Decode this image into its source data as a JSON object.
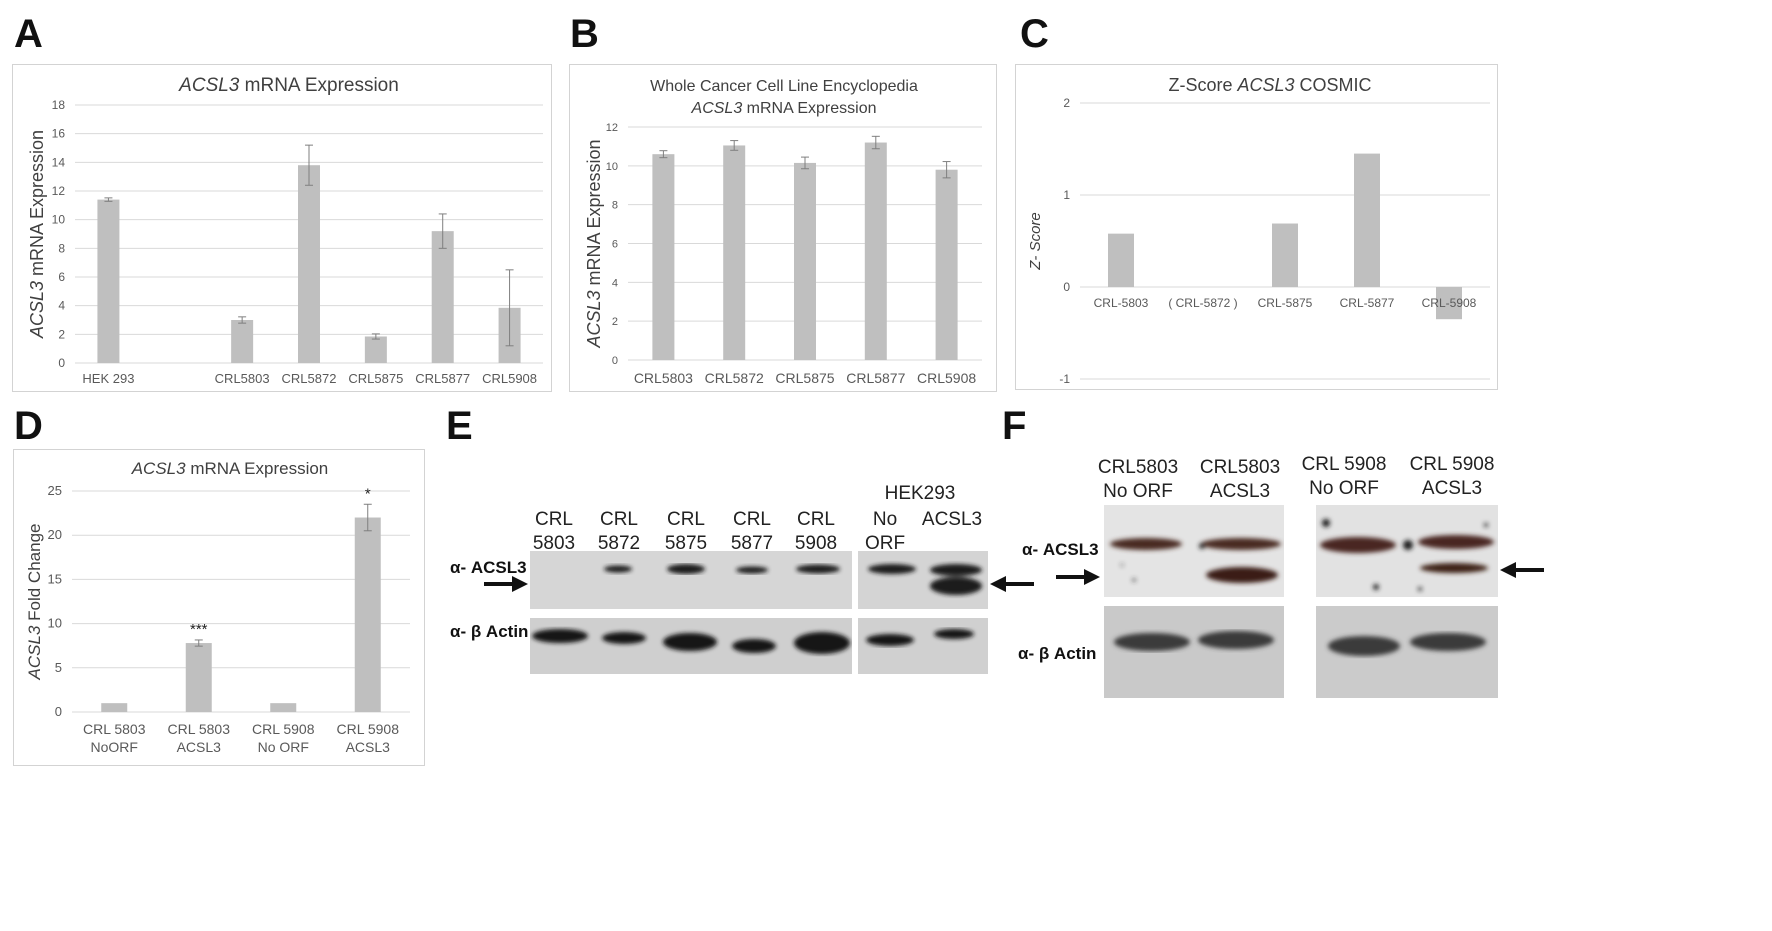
{
  "panels": {
    "A": "A",
    "B": "B",
    "C": "C",
    "D": "D",
    "E": "E",
    "F": "F"
  },
  "chart_data": [
    {
      "id": "A",
      "type": "bar",
      "title_italic": "ACSL3",
      "title_rest": " mRNA Expression",
      "ylabel_italic": "ACSL3",
      "ylabel_rest": " mRNA Expression",
      "ylim": [
        0,
        18
      ],
      "yticks": [
        0,
        2,
        4,
        6,
        8,
        10,
        12,
        14,
        16,
        18
      ],
      "grid": true,
      "categories": [
        "HEK 293",
        "",
        "CRL5803",
        "CRL5872",
        "CRL5875",
        "CRL5877",
        "CRL5908"
      ],
      "values": [
        11.4,
        null,
        3.0,
        13.8,
        1.85,
        9.2,
        3.85
      ],
      "errors": [
        0.12,
        null,
        0.22,
        1.4,
        0.18,
        1.2,
        2.65
      ]
    },
    {
      "id": "B",
      "type": "bar",
      "title_line1": "Whole Cancer Cell Line Encyclopedia",
      "title_italic": "ACSL3",
      "title_rest": " mRNA Expression",
      "ylabel_italic": "ACSL3",
      "ylabel_rest": " mRNA Expression",
      "ylim": [
        0,
        12
      ],
      "yticks": [
        0,
        2,
        4,
        6,
        8,
        10,
        12
      ],
      "grid": true,
      "categories": [
        "CRL5803",
        "CRL5872",
        "CRL5875",
        "CRL5877",
        "CRL5908"
      ],
      "values": [
        10.6,
        11.05,
        10.15,
        11.2,
        9.8
      ],
      "errors": [
        0.18,
        0.25,
        0.3,
        0.32,
        0.42
      ]
    },
    {
      "id": "C",
      "type": "bar",
      "title_pre": "Z-Score ",
      "title_italic": "ACSL3",
      "title_rest": " COSMIC",
      "ylabel": "Z- Score",
      "ylim": [
        -1,
        2
      ],
      "yticks": [
        -1,
        0,
        1,
        2
      ],
      "grid": true,
      "categories": [
        "CRL-5803",
        "( CRL-5872 )",
        "CRL-5875",
        "CRL-5877",
        "CRL-5908"
      ],
      "values": [
        0.58,
        null,
        0.69,
        1.45,
        -0.35
      ]
    },
    {
      "id": "D",
      "type": "bar",
      "title_italic": "ACSL3",
      "title_rest": " mRNA Expression",
      "ylabel_italic": "ACSL3",
      "ylabel_rest": " Fold Change",
      "ylim": [
        0,
        25
      ],
      "yticks": [
        0,
        5,
        10,
        15,
        20,
        25
      ],
      "grid": true,
      "categories": [
        [
          "CRL 5803",
          "NoORF"
        ],
        [
          "CRL 5803",
          "ACSL3"
        ],
        [
          "CRL 5908",
          "No ORF"
        ],
        [
          "CRL 5908",
          "ACSL3"
        ]
      ],
      "values": [
        1.0,
        7.8,
        1.0,
        22.0
      ],
      "errors": [
        0,
        0.35,
        0,
        1.5
      ],
      "annotations": [
        "",
        "***",
        "",
        "*"
      ]
    }
  ],
  "blot_e": {
    "lanes": [
      [
        "CRL",
        "5803"
      ],
      [
        "CRL",
        "5872"
      ],
      [
        "CRL",
        "5875"
      ],
      [
        "CRL",
        "5877"
      ],
      [
        "CRL",
        "5908"
      ]
    ],
    "hek_header": "HEK293",
    "hek_lanes": [
      [
        "No",
        "ORF"
      ],
      [
        "ACSL3",
        ""
      ]
    ],
    "row1": "α- ACSL3",
    "row2": "α- β Actin"
  },
  "blot_f": {
    "lanes": [
      [
        "CRL5803",
        "No ORF"
      ],
      [
        "CRL5803",
        "ACSL3"
      ],
      [
        "CRL 5908",
        "No ORF"
      ],
      [
        "CRL 5908",
        "ACSL3"
      ]
    ],
    "row1": "α- ACSL3",
    "row2": "α- β Actin"
  },
  "colors": {
    "bar": "#bfbfbf",
    "grid": "#d9d9d9",
    "axis_text": "#595959",
    "error": "#7f7f7f"
  }
}
